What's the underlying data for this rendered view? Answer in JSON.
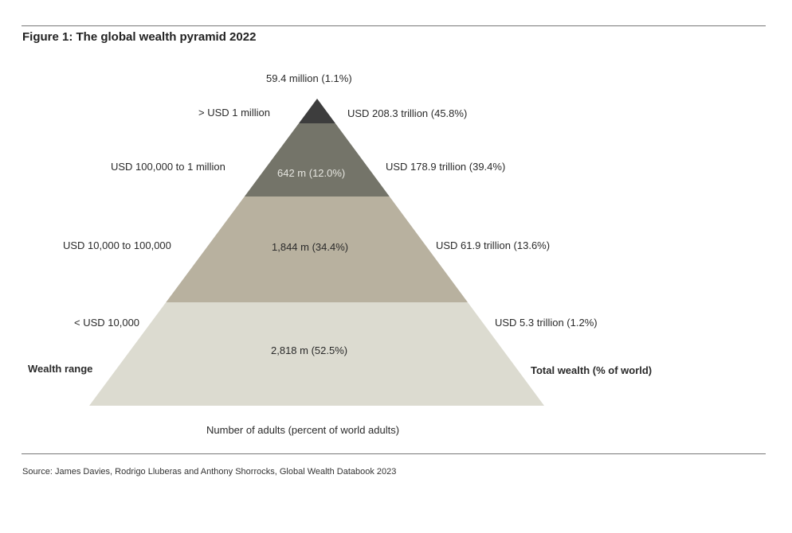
{
  "title": "Figure 1: The global wealth pyramid 2022",
  "tiers": [
    {
      "wealth_range": "> USD 1 million",
      "adults": "59.4 million (1.1%)",
      "total_wealth": "USD 208.3 trillion (45.8%)",
      "color": "#3d3d3d"
    },
    {
      "wealth_range": "USD 100,000  to 1 million",
      "adults": "642 m (12.0%)",
      "total_wealth": "USD 178.9 trillion (39.4%)",
      "color": "#747469"
    },
    {
      "wealth_range": "USD 10,000  to 100,000",
      "adults": "1,844 m (34.4%)",
      "total_wealth": "USD 61.9 trillion (13.6%)",
      "color": "#b8b19f"
    },
    {
      "wealth_range": "< USD 10,000",
      "adults": "2,818 m (52.5%)",
      "total_wealth": "USD 5.3 trillion (1.2%)",
      "color": "#dcdbd0"
    }
  ],
  "left_heading": "Wealth range",
  "right_heading": "Total wealth (% of world)",
  "bottom_heading": "Number of adults (percent of world adults)",
  "source": "Source: James Davies, Rodrigo Lluberas and Anthony Shorrocks, Global Wealth Databook 2023"
}
